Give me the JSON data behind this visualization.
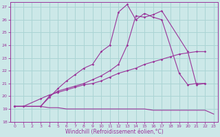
{
  "xlabel": "Windchill (Refroidissement éolien,°C)",
  "background_color": "#cce8e8",
  "grid_color": "#aad4d4",
  "line_color": "#993399",
  "xlim": [
    -0.5,
    23.5
  ],
  "ylim": [
    18,
    27.4
  ],
  "xticks": [
    0,
    1,
    2,
    3,
    4,
    5,
    6,
    7,
    8,
    9,
    10,
    11,
    12,
    13,
    14,
    15,
    16,
    17,
    18,
    19,
    20,
    21,
    22,
    23
  ],
  "yticks": [
    18,
    19,
    20,
    21,
    22,
    23,
    24,
    25,
    26,
    27
  ],
  "series": [
    {
      "x": [
        0,
        1,
        2,
        3,
        4,
        5,
        6,
        7,
        8,
        9,
        10,
        11,
        12,
        13,
        14,
        15,
        16,
        17,
        18,
        19,
        20,
        22,
        23
      ],
      "y": [
        19.2,
        19.2,
        19.2,
        19.2,
        19.1,
        19.1,
        19.0,
        19.0,
        19.0,
        19.0,
        19.0,
        19.0,
        19.0,
        19.0,
        19.0,
        19.0,
        18.9,
        18.9,
        18.9,
        18.9,
        18.9,
        18.9,
        18.6
      ],
      "marker": false
    },
    {
      "x": [
        0,
        1,
        3,
        4,
        5,
        6,
        7,
        8,
        9,
        10,
        11,
        12,
        13,
        14,
        15,
        16,
        17,
        18,
        19,
        21,
        22
      ],
      "y": [
        19.2,
        19.2,
        19.8,
        20.1,
        20.3,
        20.5,
        20.7,
        20.9,
        21.0,
        21.2,
        21.5,
        21.8,
        22.0,
        22.2,
        22.5,
        22.7,
        22.9,
        23.1,
        23.3,
        23.5,
        23.5
      ],
      "marker": true
    },
    {
      "x": [
        0,
        1,
        3,
        4,
        5,
        6,
        7,
        8,
        9,
        10,
        11,
        12,
        13,
        14,
        15,
        16,
        17,
        20,
        21,
        22
      ],
      "y": [
        19.2,
        19.2,
        19.2,
        20.0,
        20.4,
        20.6,
        20.8,
        21.0,
        21.3,
        21.6,
        22.0,
        22.5,
        24.0,
        26.3,
        26.2,
        26.4,
        26.7,
        23.5,
        20.9,
        21.0
      ],
      "marker": true
    },
    {
      "x": [
        0,
        3,
        4,
        5,
        6,
        7,
        8,
        9,
        10,
        11,
        12,
        13,
        14,
        15,
        16,
        17,
        19,
        20,
        21,
        22
      ],
      "y": [
        19.2,
        19.2,
        19.9,
        20.6,
        21.2,
        21.7,
        22.2,
        22.5,
        23.5,
        24.0,
        26.6,
        27.2,
        26.0,
        26.5,
        26.2,
        26.0,
        21.8,
        20.9,
        21.0,
        21.0
      ],
      "marker": true
    }
  ]
}
